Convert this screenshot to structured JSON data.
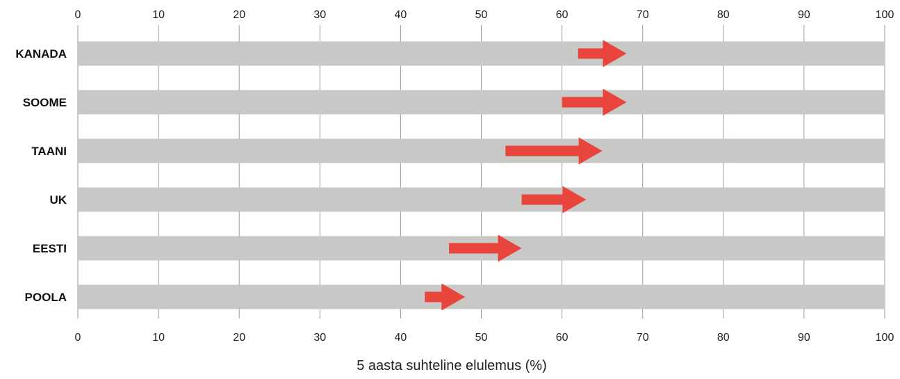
{
  "chart_data": {
    "type": "bar",
    "title": "",
    "xlabel": "5 aasta suhteline elulemus (%)",
    "ylabel": "",
    "xlim": [
      0,
      100
    ],
    "ticks": [
      "0",
      "10",
      "20",
      "30",
      "40",
      "50",
      "60",
      "70",
      "80",
      "90",
      "100"
    ],
    "grid": true,
    "categories": [
      "KANADA",
      "SOOME",
      "TAANI",
      "UK",
      "EESTI",
      "POOLA"
    ],
    "background_value": 100,
    "series": [
      {
        "values_start": [
          62,
          60,
          53,
          55,
          46,
          43
        ],
        "values_end": [
          68,
          68,
          65,
          63,
          55,
          48
        ]
      }
    ],
    "colors": {
      "bar": "#c8c8c6",
      "arrow": "#e8453c",
      "grid": "#9a9a9a",
      "text": "#222222"
    }
  }
}
